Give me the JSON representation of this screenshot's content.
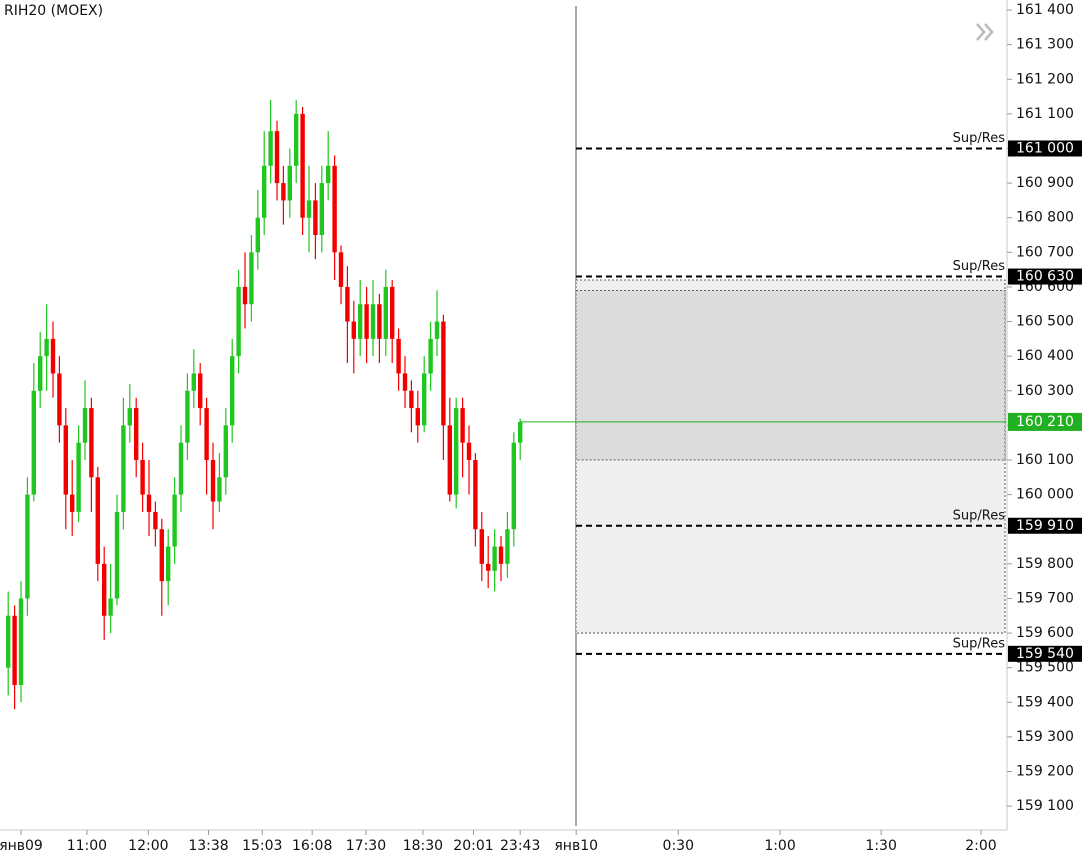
{
  "chart_data": {
    "type": "candlestick",
    "title": "RIH20 (MOEX)",
    "up_color": "#21c621",
    "down_color": "#f20000",
    "open": [
      159500,
      159650,
      159450,
      159700,
      160000,
      160300,
      160400,
      160450,
      160350,
      160200,
      160000,
      159950,
      160150,
      160250,
      160050,
      159800,
      159650,
      159700,
      159950,
      160200,
      160250,
      160100,
      160000,
      159950,
      159900,
      159750,
      159850,
      160000,
      160150,
      160300,
      160350,
      160250,
      160100,
      159980,
      160050,
      160200,
      160400,
      160600,
      160550,
      160700,
      160800,
      160950,
      161050,
      160900,
      160850,
      160950,
      161100,
      160800,
      160850,
      160750,
      160900,
      160950,
      160700,
      160600,
      160500,
      160450,
      160550,
      160450,
      160550,
      160450,
      160600,
      160450,
      160350,
      160300,
      160250,
      160200,
      160350,
      160450,
      160500,
      160200,
      160000,
      160250,
      160150,
      160100,
      159900,
      159800,
      159780,
      159850,
      159800,
      159900,
      160150
    ],
    "high": [
      159720,
      159680,
      159750,
      160050,
      160380,
      160470,
      160550,
      160500,
      160400,
      160250,
      160100,
      160200,
      160330,
      160280,
      160080,
      159850,
      159800,
      160000,
      160280,
      160320,
      160280,
      160150,
      160100,
      159980,
      159930,
      159900,
      160050,
      160200,
      160350,
      160420,
      160380,
      160280,
      160150,
      160120,
      160250,
      160450,
      160650,
      160700,
      160750,
      160880,
      161050,
      161140,
      161080,
      160950,
      161000,
      161140,
      161120,
      160950,
      160900,
      160950,
      161050,
      160980,
      160720,
      160660,
      160560,
      160620,
      160600,
      160620,
      160580,
      160650,
      160620,
      160480,
      160400,
      160330,
      160300,
      160400,
      160500,
      160590,
      160520,
      160280,
      160280,
      160280,
      160200,
      160120,
      159950,
      159880,
      159900,
      159880,
      159950,
      160180,
      160220
    ],
    "low": [
      159420,
      159380,
      159400,
      159650,
      159980,
      160250,
      160300,
      160280,
      160150,
      159900,
      159880,
      159920,
      160100,
      159950,
      159750,
      159580,
      159600,
      159680,
      159900,
      160150,
      160050,
      159950,
      159880,
      159850,
      159650,
      159680,
      159800,
      159950,
      160100,
      160250,
      160200,
      160000,
      159900,
      159950,
      160000,
      160150,
      160350,
      160480,
      160500,
      160650,
      160750,
      160900,
      160850,
      160780,
      160800,
      160900,
      160750,
      160700,
      160680,
      160700,
      160850,
      160620,
      160550,
      160380,
      160350,
      160400,
      160380,
      160400,
      160380,
      160400,
      160380,
      160300,
      160250,
      160180,
      160150,
      160180,
      160300,
      160400,
      160100,
      159980,
      159960,
      160050,
      160000,
      159850,
      159750,
      159730,
      159720,
      159750,
      159760,
      159850,
      160100
    ],
    "close": [
      159650,
      159450,
      159700,
      160000,
      160300,
      160400,
      160450,
      160350,
      160200,
      160000,
      159950,
      160150,
      160250,
      160050,
      159800,
      159650,
      159700,
      159950,
      160200,
      160250,
      160100,
      160000,
      159950,
      159900,
      159750,
      159850,
      160000,
      160150,
      160300,
      160350,
      160250,
      160100,
      159980,
      160050,
      160200,
      160400,
      160600,
      160550,
      160700,
      160800,
      160950,
      161050,
      160900,
      160850,
      160950,
      161100,
      160800,
      160850,
      160750,
      160900,
      160950,
      160700,
      160600,
      160500,
      160450,
      160550,
      160450,
      160550,
      160450,
      160600,
      160450,
      160350,
      160300,
      160250,
      160200,
      160350,
      160450,
      160500,
      160200,
      160000,
      160250,
      160150,
      160100,
      159900,
      159800,
      159780,
      159850,
      159800,
      159900,
      160150,
      160210
    ],
    "xlim": [
      -0.5,
      155.75
    ],
    "xticks": [
      {
        "value": 2,
        "label": "янв09"
      },
      {
        "value": 12.3,
        "label": "11:00"
      },
      {
        "value": 21.9,
        "label": "12:00"
      },
      {
        "value": 31.3,
        "label": "13:38"
      },
      {
        "value": 39.7,
        "label": "15:03"
      },
      {
        "value": 47.5,
        "label": "16:08"
      },
      {
        "value": 55.9,
        "label": "17:30"
      },
      {
        "value": 64.8,
        "label": "18:30"
      },
      {
        "value": 72.7,
        "label": "20:01"
      },
      {
        "value": 80,
        "label": "23:43"
      },
      {
        "value": 88.75,
        "label": "янв10"
      },
      {
        "value": 104.7,
        "label": "0:30"
      },
      {
        "value": 120.6,
        "label": "1:00"
      },
      {
        "value": 136.4,
        "label": "1:30"
      },
      {
        "value": 152,
        "label": "2:00"
      }
    ],
    "ylim": [
      159031,
      161429
    ],
    "yticks": [
      {
        "value": 159100,
        "label": "159 100"
      },
      {
        "value": 159200,
        "label": "159 200"
      },
      {
        "value": 159300,
        "label": "159 300"
      },
      {
        "value": 159400,
        "label": "159 400"
      },
      {
        "value": 159500,
        "label": "159 500"
      },
      {
        "value": 159600,
        "label": "159 600"
      },
      {
        "value": 159700,
        "label": "159 700"
      },
      {
        "value": 159800,
        "label": "159 800"
      },
      {
        "value": 159900,
        "label": "159 900"
      },
      {
        "value": 160000,
        "label": "160 000"
      },
      {
        "value": 160100,
        "label": "160 100"
      },
      {
        "value": 160200,
        "label": "160 200"
      },
      {
        "value": 160300,
        "label": "160 300"
      },
      {
        "value": 160400,
        "label": "160 400"
      },
      {
        "value": 160500,
        "label": "160 500"
      },
      {
        "value": 160600,
        "label": "160 600"
      },
      {
        "value": 160700,
        "label": "160 700"
      },
      {
        "value": 160800,
        "label": "160 800"
      },
      {
        "value": 160900,
        "label": "160 900"
      },
      {
        "value": 161000,
        "label": "161 000"
      },
      {
        "value": 161100,
        "label": "161 100"
      },
      {
        "value": 161200,
        "label": "161 200"
      },
      {
        "value": 161300,
        "label": "161 300"
      },
      {
        "value": 161400,
        "label": "161 400"
      }
    ],
    "zones": [
      {
        "from": 159600,
        "to": 160620,
        "color": "#efefef"
      },
      {
        "from": 160100,
        "to": 160590,
        "color": "#dcdcdc"
      }
    ],
    "levels": [
      {
        "name": "Sup/Res",
        "value": 161000,
        "value_label": "161 000"
      },
      {
        "name": "Sup/Res",
        "value": 160630,
        "value_label": "160 630"
      },
      {
        "name": "Sup/Res",
        "value": 159910,
        "value_label": "159 910"
      },
      {
        "name": "Sup/Res",
        "value": 159540,
        "value_label": "159 540"
      }
    ],
    "last": {
      "value": 160210,
      "label": "160 210",
      "color": "#21b021"
    }
  }
}
